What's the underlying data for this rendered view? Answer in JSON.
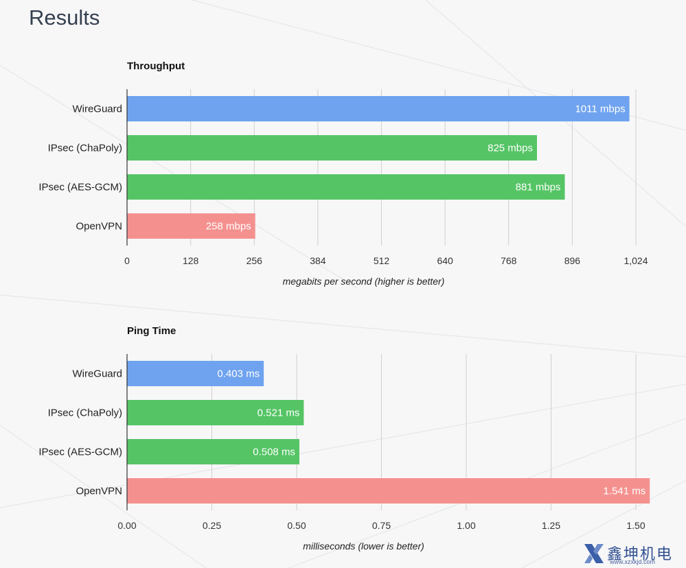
{
  "page": {
    "title": "Results"
  },
  "chart_data": [
    {
      "type": "bar",
      "orientation": "horizontal",
      "title": "Throughput",
      "categories": [
        "WireGuard",
        "IPsec (ChaPoly)",
        "IPsec (AES-GCM)",
        "OpenVPN"
      ],
      "values": [
        1011,
        825,
        881,
        258
      ],
      "value_labels": [
        "1011 mbps",
        "825 mbps",
        "881 mbps",
        "258 mbps"
      ],
      "colors": [
        "#6fa3ef",
        "#55c465",
        "#55c465",
        "#f4918f"
      ],
      "xlabel": "megabits per second (higher is better)",
      "xlim": [
        0,
        1024
      ],
      "ticks": [
        0,
        128,
        256,
        384,
        512,
        640,
        768,
        896,
        1024
      ],
      "tick_labels": [
        "0",
        "128",
        "256",
        "384",
        "512",
        "640",
        "768",
        "896",
        "1,024"
      ],
      "grid": true
    },
    {
      "type": "bar",
      "orientation": "horizontal",
      "title": "Ping Time",
      "categories": [
        "WireGuard",
        "IPsec (ChaPoly)",
        "IPsec (AES-GCM)",
        "OpenVPN"
      ],
      "values": [
        0.403,
        0.521,
        0.508,
        1.541
      ],
      "value_labels": [
        "0.403 ms",
        "0.521 ms",
        "0.508 ms",
        "1.541 ms"
      ],
      "colors": [
        "#6fa3ef",
        "#55c465",
        "#55c465",
        "#f4918f"
      ],
      "xlabel": "milliseconds (lower is better)",
      "xlim": [
        0,
        1.5
      ],
      "ticks": [
        0,
        0.25,
        0.5,
        0.75,
        1.0,
        1.25,
        1.5
      ],
      "tick_labels": [
        "0.00",
        "0.25",
        "0.50",
        "0.75",
        "1.00",
        "1.25",
        "1.50"
      ],
      "grid": true
    }
  ],
  "watermark": {
    "text": "鑫坤机电",
    "url": "www.xzxkjd.com",
    "logo_icon": "x-logo-icon"
  }
}
